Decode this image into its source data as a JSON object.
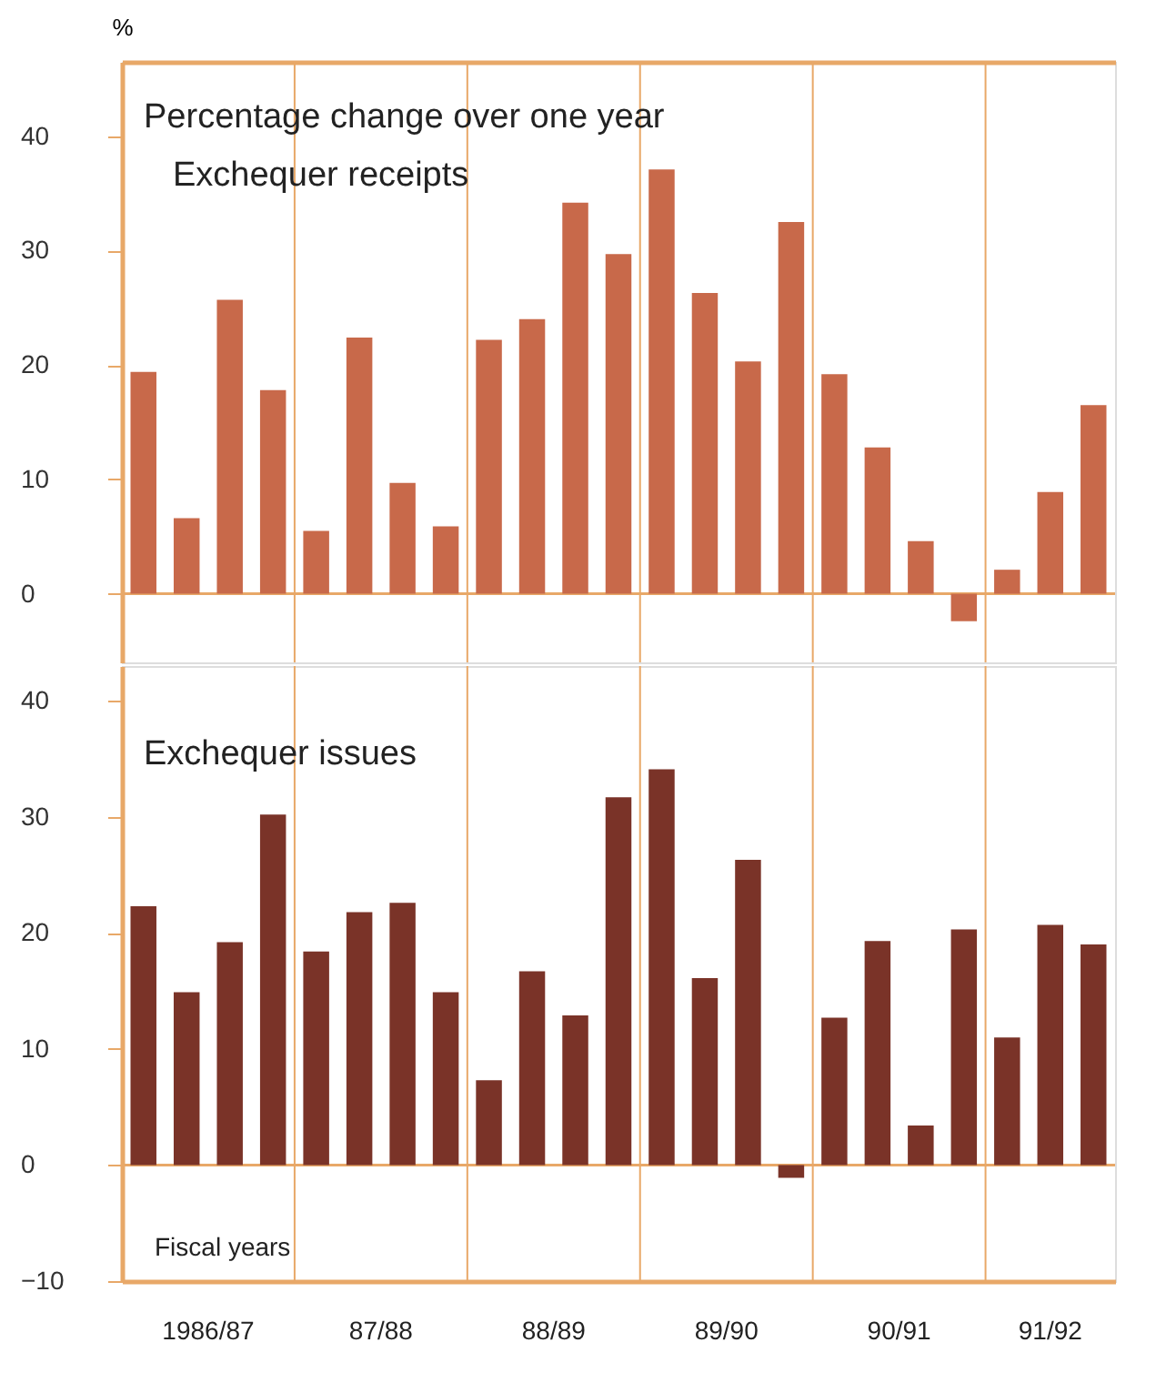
{
  "chart_data": [
    {
      "type": "bar",
      "title": "Percentage change over one year",
      "subtitle": "Exchequer receipts",
      "ylabel": "%",
      "categories": [
        null,
        null,
        null,
        null,
        null,
        null,
        null,
        null,
        null,
        null,
        null,
        null,
        null,
        null,
        null,
        null,
        null,
        null,
        null,
        null,
        null,
        null,
        null
      ],
      "series": [
        {
          "color": "#c8694a",
          "values": [
            19.4,
            6.6,
            25.7,
            17.8,
            5.5,
            22.4,
            9.7,
            5.9,
            22.2,
            24.0,
            34.2,
            29.7,
            37.1,
            26.3,
            20.3,
            32.5,
            19.2,
            12.8,
            4.6,
            -2.4,
            2.1,
            8.9,
            16.5
          ]
        }
      ],
      "ylim": [
        -6,
        46.5
      ],
      "yticks": [
        0,
        10,
        20,
        30,
        40
      ],
      "grid": "x",
      "ref_lines": [
        {
          "axis": "y",
          "value": 0
        }
      ]
    },
    {
      "type": "bar",
      "title": "Exchequer issues",
      "xlabel": "Fiscal years",
      "categories": [
        null,
        null,
        null,
        null,
        null,
        null,
        null,
        null,
        null,
        null,
        null,
        null,
        null,
        null,
        null,
        null,
        null,
        null,
        null,
        null,
        null,
        null,
        null
      ],
      "series": [
        {
          "color": "#7a3328",
          "values": [
            22.3,
            14.9,
            19.2,
            30.2,
            18.4,
            21.8,
            22.6,
            14.9,
            7.3,
            16.7,
            12.9,
            31.7,
            34.1,
            16.1,
            26.3,
            -1.1,
            12.7,
            19.3,
            3.4,
            20.3,
            11.0,
            20.7,
            19.0
          ]
        }
      ],
      "ylim": [
        -10,
        43
      ],
      "yticks": [
        -10,
        0,
        10,
        20,
        30,
        40
      ],
      "grid": "x",
      "ref_lines": [
        {
          "axis": "y",
          "value": 0
        }
      ],
      "annotations": [
        "1986/87",
        "87/88",
        "88/89",
        "89/90",
        "90/91",
        "91/92"
      ]
    }
  ]
}
